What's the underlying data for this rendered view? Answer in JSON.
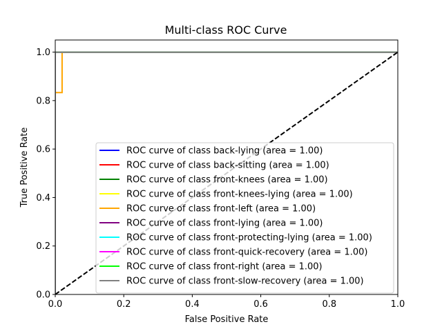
{
  "chart_data": {
    "type": "line",
    "title": "Multi-class ROC Curve",
    "xlabel": "False Positive Rate",
    "ylabel": "True Positive Rate",
    "xlim": [
      0.0,
      1.0
    ],
    "ylim": [
      0.0,
      1.05
    ],
    "x_ticks": [
      "0.0",
      "0.2",
      "0.4",
      "0.6",
      "0.8",
      "1.0"
    ],
    "y_ticks": [
      "0.0",
      "0.2",
      "0.4",
      "0.6",
      "0.8",
      "1.0"
    ],
    "grid": false,
    "legend_position": "lower-right",
    "series": [
      {
        "name": "ROC curve of class back-lying (area = 1.00)",
        "color": "#0000ff",
        "x": [
          0,
          0,
          1
        ],
        "y": [
          0,
          1,
          1
        ]
      },
      {
        "name": "ROC curve of class back-sitting (area = 1.00)",
        "color": "#ff0000",
        "x": [
          0,
          0,
          1
        ],
        "y": [
          0,
          1,
          1
        ]
      },
      {
        "name": "ROC curve of class front-knees (area = 1.00)",
        "color": "#008000",
        "x": [
          0,
          0,
          1
        ],
        "y": [
          0,
          1,
          1
        ]
      },
      {
        "name": "ROC curve of class front-knees-lying (area = 1.00)",
        "color": "#ffff00",
        "x": [
          0,
          0,
          1
        ],
        "y": [
          0,
          1,
          1
        ]
      },
      {
        "name": "ROC curve of class front-left (area = 1.00)",
        "color": "#ffa500",
        "x": [
          0,
          0,
          0.02,
          0.02,
          1
        ],
        "y": [
          0,
          0.833,
          0.833,
          1,
          1
        ]
      },
      {
        "name": "ROC curve of class front-lying (area = 1.00)",
        "color": "#800080",
        "x": [
          0,
          0,
          1
        ],
        "y": [
          0,
          1,
          1
        ]
      },
      {
        "name": "ROC curve of class front-protecting-lying (area = 1.00)",
        "color": "#00ffff",
        "x": [
          0,
          0,
          1
        ],
        "y": [
          0,
          1,
          1
        ]
      },
      {
        "name": "ROC curve of class front-quick-recovery (area = 1.00)",
        "color": "#ff00ff",
        "x": [
          0,
          0,
          1
        ],
        "y": [
          0,
          1,
          1
        ]
      },
      {
        "name": "ROC curve of class front-right (area = 1.00)",
        "color": "#00ff00",
        "x": [
          0,
          0,
          1
        ],
        "y": [
          0,
          1,
          1
        ]
      },
      {
        "name": "ROC curve of class front-slow-recovery (area = 1.00)",
        "color": "#808080",
        "x": [
          0,
          0,
          1
        ],
        "y": [
          0,
          1,
          1
        ]
      }
    ],
    "diagonal": {
      "x": [
        0,
        1
      ],
      "y": [
        0,
        1
      ],
      "color": "#000000",
      "style": "dashed"
    }
  }
}
